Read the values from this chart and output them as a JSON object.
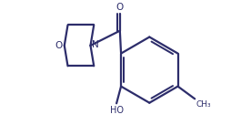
{
  "background_color": "#ffffff",
  "line_color": "#2d2d6b",
  "line_width": 1.6,
  "figsize": [
    2.54,
    1.37
  ],
  "dpi": 100,
  "xlim": [
    0,
    10
  ],
  "ylim": [
    0,
    5.4
  ]
}
